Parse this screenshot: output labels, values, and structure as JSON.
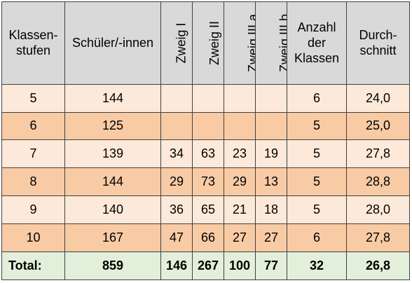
{
  "headers": {
    "klassenstufen": [
      "Klassen-",
      "stufen"
    ],
    "schueler": "Schüler/-innen",
    "zweig1": "Zweig I",
    "zweig2": "Zweig II",
    "zweig3a": "Zweig III a",
    "zweig3b": "Zweig III b",
    "anzahl": [
      "Anzahl",
      "der",
      "Klassen"
    ],
    "durchschnitt": [
      "Durch-",
      "schnitt"
    ]
  },
  "rows": [
    {
      "stufe": "5",
      "schueler": "144",
      "z1": "",
      "z2": "",
      "z3a": "",
      "z3b": "",
      "anzahl": "6",
      "schnitt": "24,0"
    },
    {
      "stufe": "6",
      "schueler": "125",
      "z1": "",
      "z2": "",
      "z3a": "",
      "z3b": "",
      "anzahl": "5",
      "schnitt": "25,0"
    },
    {
      "stufe": "7",
      "schueler": "139",
      "z1": "34",
      "z2": "63",
      "z3a": "23",
      "z3b": "19",
      "anzahl": "5",
      "schnitt": "27,8"
    },
    {
      "stufe": "8",
      "schueler": "144",
      "z1": "29",
      "z2": "73",
      "z3a": "29",
      "z3b": "13",
      "anzahl": "5",
      "schnitt": "28,8"
    },
    {
      "stufe": "9",
      "schueler": "140",
      "z1": "36",
      "z2": "65",
      "z3a": "21",
      "z3b": "18",
      "anzahl": "5",
      "schnitt": "28,0"
    },
    {
      "stufe": "10",
      "schueler": "167",
      "z1": "47",
      "z2": "66",
      "z3a": "27",
      "z3b": "27",
      "anzahl": "6",
      "schnitt": "27,8"
    }
  ],
  "total": {
    "label": "Total:",
    "schueler": "859",
    "z1": "146",
    "z2": "267",
    "z3a": "100",
    "z3b": "77",
    "anzahl": "32",
    "schnitt": "26,8"
  },
  "colors": {
    "header_bg": "#d9d9d9",
    "row_light": "#fde9d9",
    "row_dark": "#f8cba5",
    "total_bg": "#e2efda",
    "border": "#404040"
  }
}
